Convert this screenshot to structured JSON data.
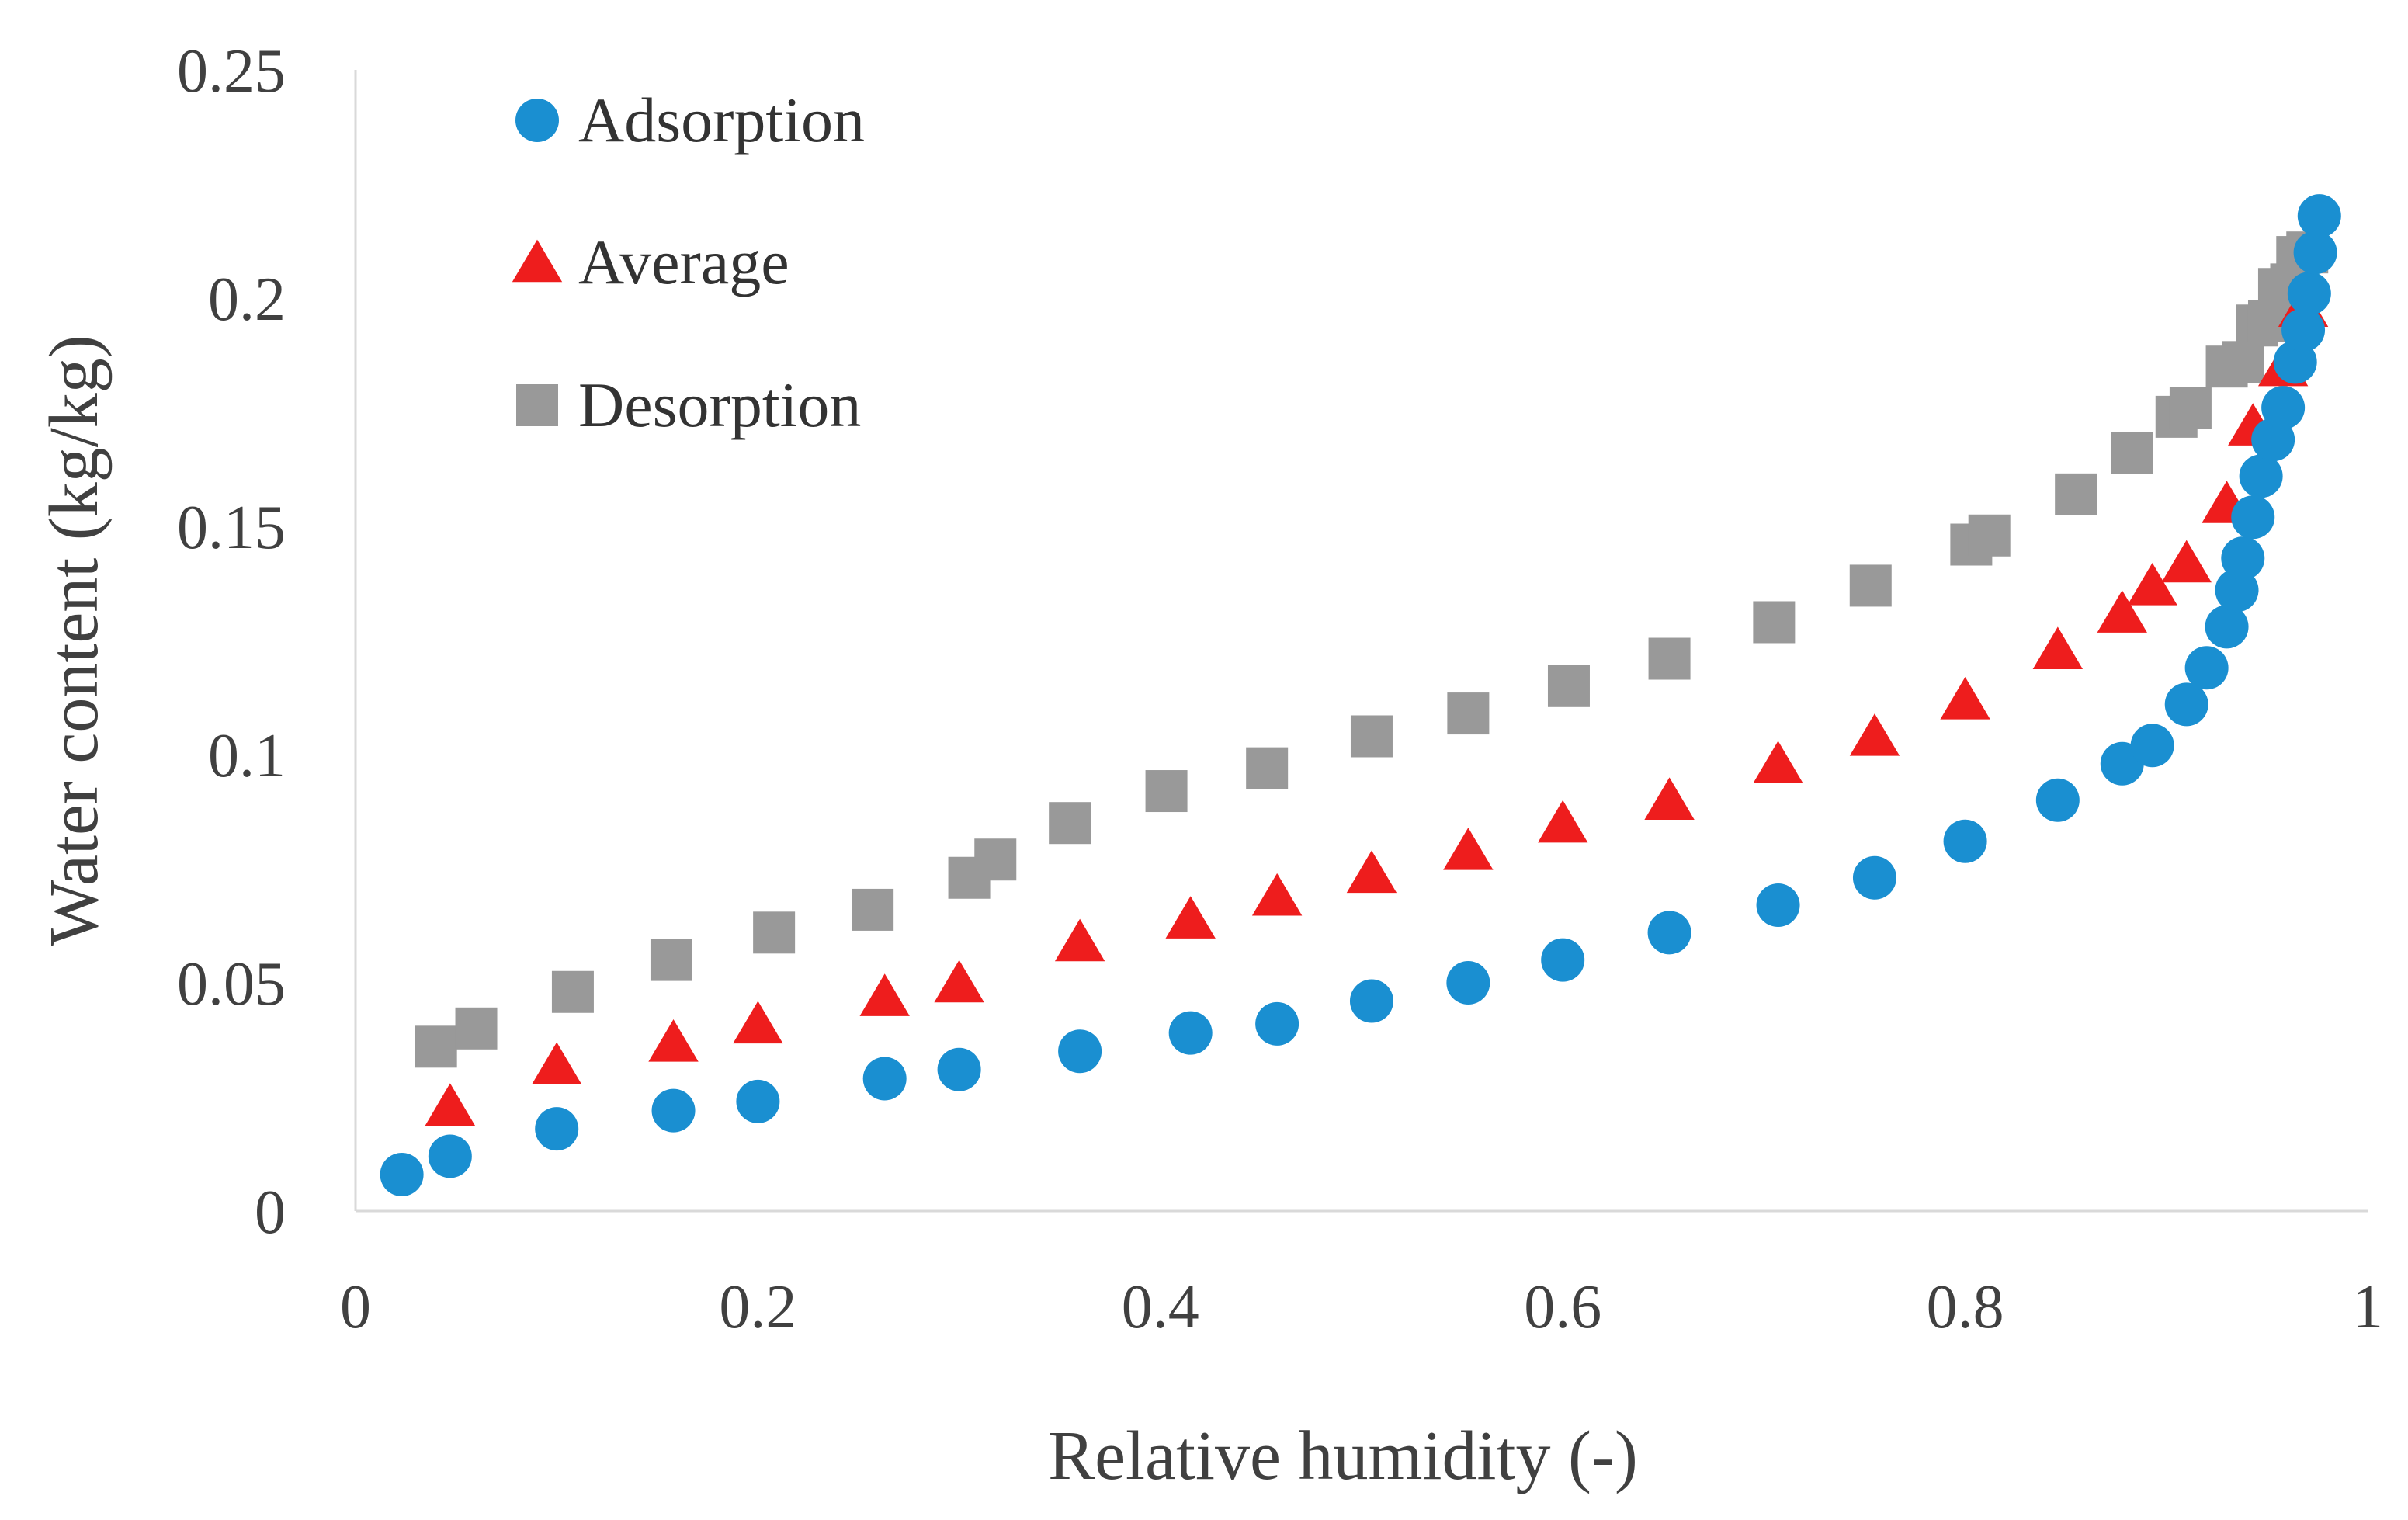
{
  "chart_data": {
    "type": "scatter",
    "title": "",
    "xlabel": "Relative humidity (-)",
    "ylabel": "Water content (kg/kg)",
    "xlim": [
      0,
      1
    ],
    "ylim": [
      0,
      0.25
    ],
    "x_ticks": [
      "0",
      "0.2",
      "0.4",
      "0.6",
      "0.8",
      "1"
    ],
    "x_tick_values": [
      0,
      0.2,
      0.4,
      0.6,
      0.8,
      1
    ],
    "y_ticks": [
      "0",
      "0.05",
      "0.1",
      "0.15",
      "0.2",
      "0.25"
    ],
    "y_tick_values": [
      0,
      0.05,
      0.1,
      0.15,
      0.2,
      0.25
    ],
    "grid": false,
    "legend_position": "top-left",
    "series": [
      {
        "name": "Adsorption",
        "marker": "circle",
        "color": "#1a8fd1",
        "points": [
          [
            0.023,
            0.008
          ],
          [
            0.047,
            0.012
          ],
          [
            0.1,
            0.018
          ],
          [
            0.158,
            0.022
          ],
          [
            0.2,
            0.024
          ],
          [
            0.263,
            0.029
          ],
          [
            0.3,
            0.031
          ],
          [
            0.36,
            0.035
          ],
          [
            0.415,
            0.039
          ],
          [
            0.458,
            0.041
          ],
          [
            0.505,
            0.046
          ],
          [
            0.553,
            0.05
          ],
          [
            0.6,
            0.055
          ],
          [
            0.653,
            0.061
          ],
          [
            0.707,
            0.067
          ],
          [
            0.755,
            0.073
          ],
          [
            0.8,
            0.081
          ],
          [
            0.846,
            0.09
          ],
          [
            0.878,
            0.098
          ],
          [
            0.893,
            0.102
          ],
          [
            0.91,
            0.111
          ],
          [
            0.92,
            0.119
          ],
          [
            0.93,
            0.128
          ],
          [
            0.935,
            0.136
          ],
          [
            0.938,
            0.143
          ],
          [
            0.943,
            0.152
          ],
          [
            0.947,
            0.161
          ],
          [
            0.953,
            0.169
          ],
          [
            0.958,
            0.176
          ],
          [
            0.964,
            0.186
          ],
          [
            0.968,
            0.193
          ],
          [
            0.971,
            0.201
          ],
          [
            0.974,
            0.21
          ],
          [
            0.976,
            0.218
          ]
        ]
      },
      {
        "name": "Average",
        "marker": "triangle",
        "color": "#ee1d1d",
        "points": [
          [
            0.047,
            0.023
          ],
          [
            0.1,
            0.032
          ],
          [
            0.158,
            0.037
          ],
          [
            0.2,
            0.041
          ],
          [
            0.263,
            0.047
          ],
          [
            0.3,
            0.05
          ],
          [
            0.36,
            0.059
          ],
          [
            0.415,
            0.064
          ],
          [
            0.458,
            0.069
          ],
          [
            0.505,
            0.074
          ],
          [
            0.553,
            0.079
          ],
          [
            0.6,
            0.085
          ],
          [
            0.653,
            0.09
          ],
          [
            0.707,
            0.098
          ],
          [
            0.755,
            0.104
          ],
          [
            0.8,
            0.112
          ],
          [
            0.846,
            0.123
          ],
          [
            0.878,
            0.131
          ],
          [
            0.893,
            0.137
          ],
          [
            0.91,
            0.142
          ],
          [
            0.93,
            0.155
          ],
          [
            0.943,
            0.172
          ],
          [
            0.958,
            0.185
          ],
          [
            0.968,
            0.198
          ]
        ]
      },
      {
        "name": "Desorption",
        "marker": "square",
        "color": "#999999",
        "points": [
          [
            0.04,
            0.036
          ],
          [
            0.06,
            0.04
          ],
          [
            0.108,
            0.048
          ],
          [
            0.157,
            0.055
          ],
          [
            0.208,
            0.061
          ],
          [
            0.257,
            0.066
          ],
          [
            0.305,
            0.073
          ],
          [
            0.318,
            0.077
          ],
          [
            0.355,
            0.085
          ],
          [
            0.403,
            0.092
          ],
          [
            0.453,
            0.097
          ],
          [
            0.505,
            0.104
          ],
          [
            0.553,
            0.109
          ],
          [
            0.603,
            0.115
          ],
          [
            0.653,
            0.121
          ],
          [
            0.705,
            0.129
          ],
          [
            0.753,
            0.137
          ],
          [
            0.803,
            0.146
          ],
          [
            0.812,
            0.148
          ],
          [
            0.855,
            0.157
          ],
          [
            0.883,
            0.166
          ],
          [
            0.905,
            0.174
          ],
          [
            0.912,
            0.176
          ],
          [
            0.93,
            0.185
          ],
          [
            0.938,
            0.186
          ],
          [
            0.945,
            0.194
          ],
          [
            0.951,
            0.195
          ],
          [
            0.956,
            0.202
          ],
          [
            0.962,
            0.203
          ],
          [
            0.965,
            0.209
          ],
          [
            0.97,
            0.21
          ]
        ]
      }
    ]
  }
}
